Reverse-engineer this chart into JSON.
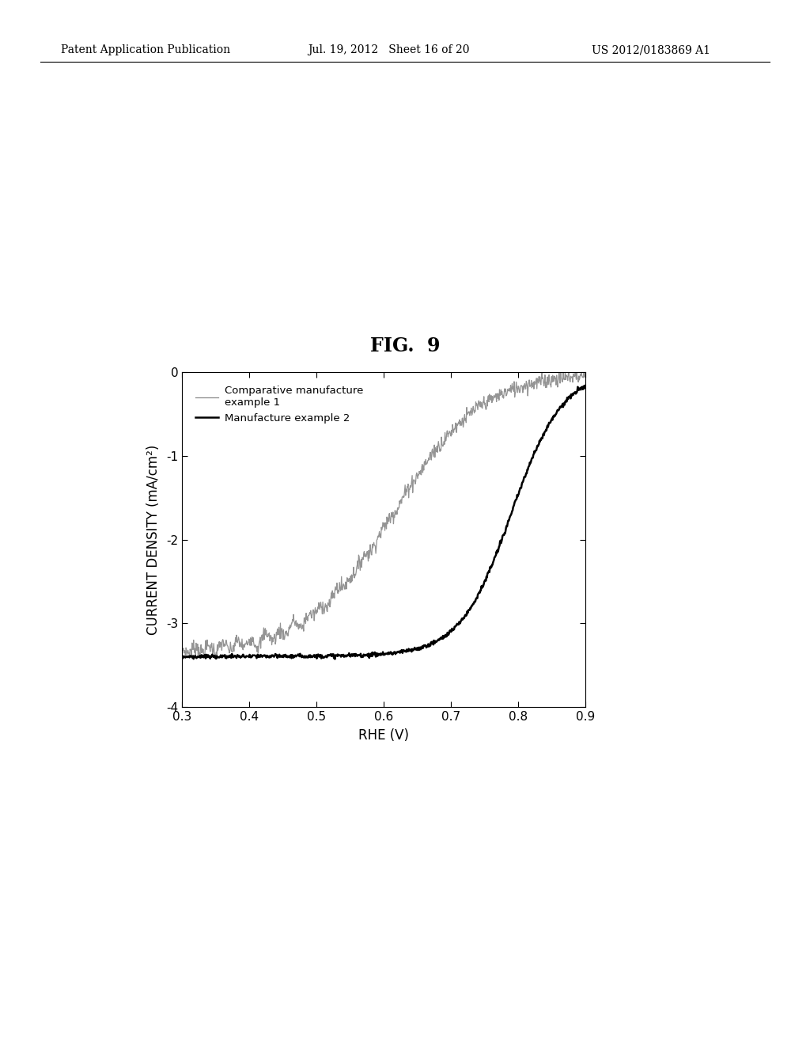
{
  "title": "FIG.  9",
  "xlabel": "RHE (V)",
  "ylabel": "CURRENT DENSITY (mA/cm²)",
  "xlim": [
    0.3,
    0.9
  ],
  "ylim": [
    -4,
    0
  ],
  "xticks": [
    0.3,
    0.4,
    0.5,
    0.6,
    0.7,
    0.8,
    0.9
  ],
  "yticks": [
    -4,
    -3,
    -2,
    -1,
    0
  ],
  "ytick_labels": [
    "-4",
    "-3",
    "-2",
    "-1",
    "0"
  ],
  "header_left": "Patent Application Publication",
  "header_mid": "Jul. 19, 2012   Sheet 16 of 20",
  "header_right": "US 2012/0183869 A1",
  "legend_line1": "Comparative manufacture\nexample 1",
  "legend_line2": "Manufacture example 2",
  "bg_color": "#ffffff",
  "line1_color": "#888888",
  "line2_color": "#000000",
  "title_fontsize": 17,
  "axis_fontsize": 11,
  "header_fontsize": 10
}
